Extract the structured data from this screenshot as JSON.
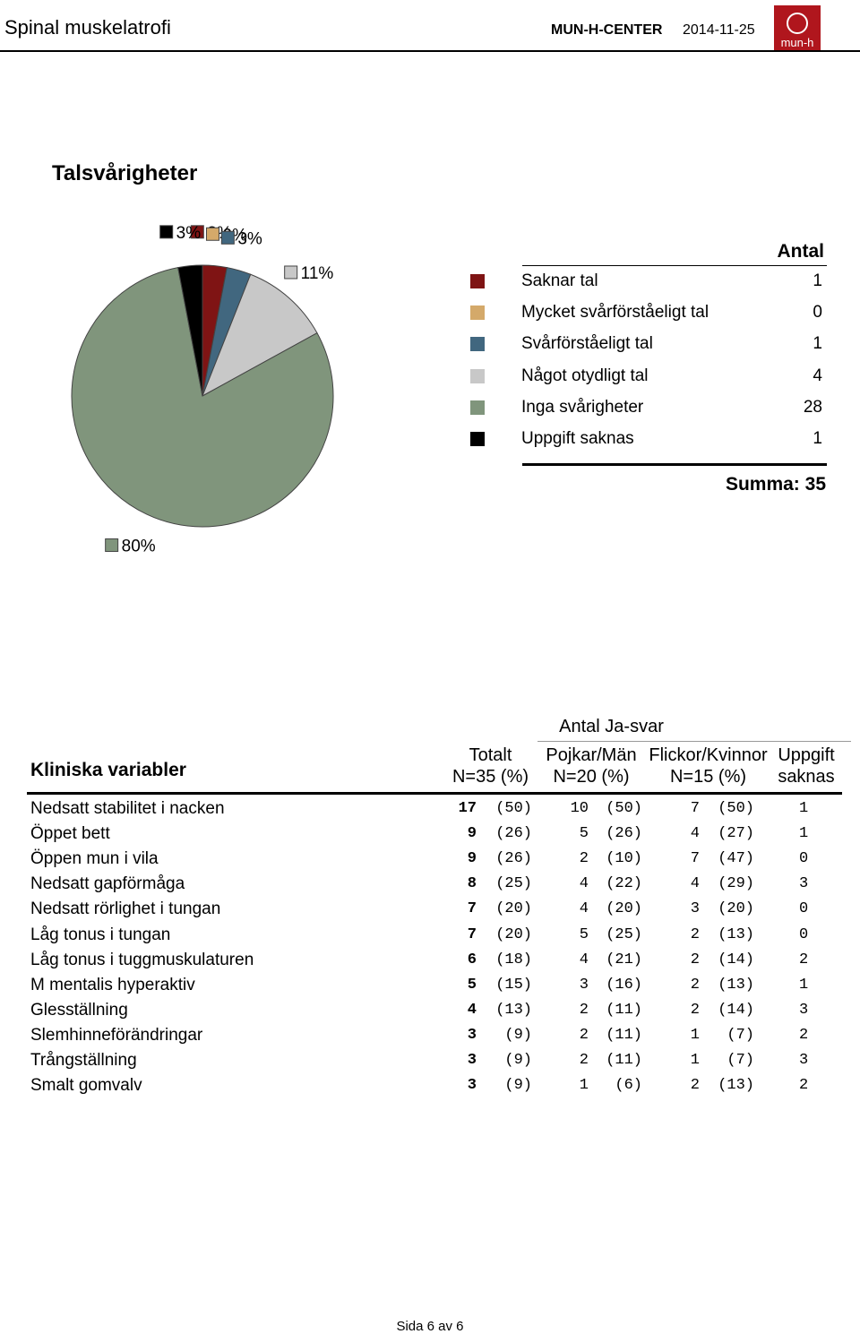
{
  "header": {
    "title": "Spinal muskelatrofi",
    "org": "MUN-H-CENTER",
    "date": "2014-11-25",
    "logo": "mun-h"
  },
  "chart_data": {
    "type": "pie",
    "title": "Talsvårigheter",
    "categories": [
      "Saknar tal",
      "Mycket svårförståeligt tal",
      "Svårförståeligt tal",
      "Något otydligt tal",
      "Inga svårigheter",
      "Uppgift saknas"
    ],
    "values": [
      3,
      0,
      3,
      11,
      80,
      3
    ],
    "value_labels": [
      "3%",
      "0%",
      "3%",
      "11%",
      "80%",
      "3%"
    ],
    "colors": [
      "#7f1414",
      "#d4a96a",
      "#41677f",
      "#c8c8c8",
      "#80957c",
      "#000000"
    ],
    "legend_title": "Antal",
    "counts": [
      1,
      0,
      1,
      4,
      28,
      1
    ],
    "total_label": "Summa: 35"
  },
  "table": {
    "group_header": "Antal Ja-svar",
    "headers": [
      [
        "Kliniska variabler"
      ],
      [
        "Totalt",
        "N=35 (%)"
      ],
      [
        "Pojkar/Män",
        "N=20 (%)"
      ],
      [
        "Flickor/Kvinnor",
        "N=15 (%)"
      ],
      [
        "Uppgift",
        "saknas"
      ]
    ],
    "rows": [
      [
        "Nedsatt stabilitet i nacken",
        "17",
        "(50)",
        "10",
        "(50)",
        "7",
        "(50)",
        "1"
      ],
      [
        "Öppet bett",
        "9",
        "(26)",
        "5",
        "(26)",
        "4",
        "(27)",
        "1"
      ],
      [
        "Öppen mun i vila",
        "9",
        "(26)",
        "2",
        "(10)",
        "7",
        "(47)",
        "0"
      ],
      [
        "Nedsatt gapförmåga",
        "8",
        "(25)",
        "4",
        "(22)",
        "4",
        "(29)",
        "3"
      ],
      [
        "Nedsatt rörlighet i tungan",
        "7",
        "(20)",
        "4",
        "(20)",
        "3",
        "(20)",
        "0"
      ],
      [
        "Låg tonus i tungan",
        "7",
        "(20)",
        "5",
        "(25)",
        "2",
        "(13)",
        "0"
      ],
      [
        "Låg tonus i tuggmuskulaturen",
        "6",
        "(18)",
        "4",
        "(21)",
        "2",
        "(14)",
        "2"
      ],
      [
        "M mentalis hyperaktiv",
        "5",
        "(15)",
        "3",
        "(16)",
        "2",
        "(13)",
        "1"
      ],
      [
        "Glesställning",
        "4",
        "(13)",
        "2",
        "(11)",
        "2",
        "(14)",
        "3"
      ],
      [
        "Slemhinneförändringar",
        "3",
        "(9)",
        "2",
        "(11)",
        "1",
        "(7)",
        "2"
      ],
      [
        "Trångställning",
        "3",
        "(9)",
        "2",
        "(11)",
        "1",
        "(7)",
        "3"
      ],
      [
        "Smalt gomvalv",
        "3",
        "(9)",
        "1",
        "(6)",
        "2",
        "(13)",
        "2"
      ]
    ]
  },
  "footer": "Sida 6 av 6"
}
